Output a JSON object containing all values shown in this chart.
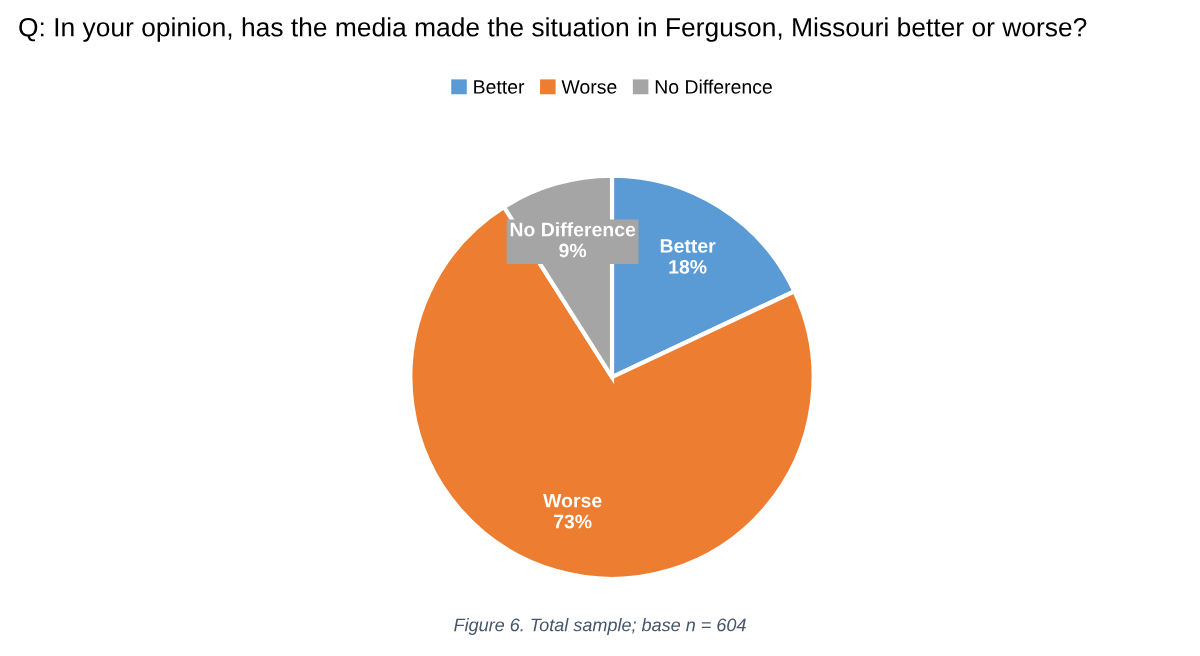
{
  "chart_data": {
    "type": "pie",
    "title": "Q: In your opinion, has the media made the situation in Ferguson, Missouri better or worse?",
    "categories": [
      "Better",
      "Worse",
      "No Difference"
    ],
    "values": [
      18,
      73,
      9
    ],
    "colors": [
      "#5b9bd5",
      "#ed7d31",
      "#a5a5a5"
    ],
    "legend": "top",
    "value_labels": [
      "18%",
      "73%",
      "9%"
    ],
    "annotations": [
      "Figure 6. Total sample; base n = 604"
    ]
  }
}
